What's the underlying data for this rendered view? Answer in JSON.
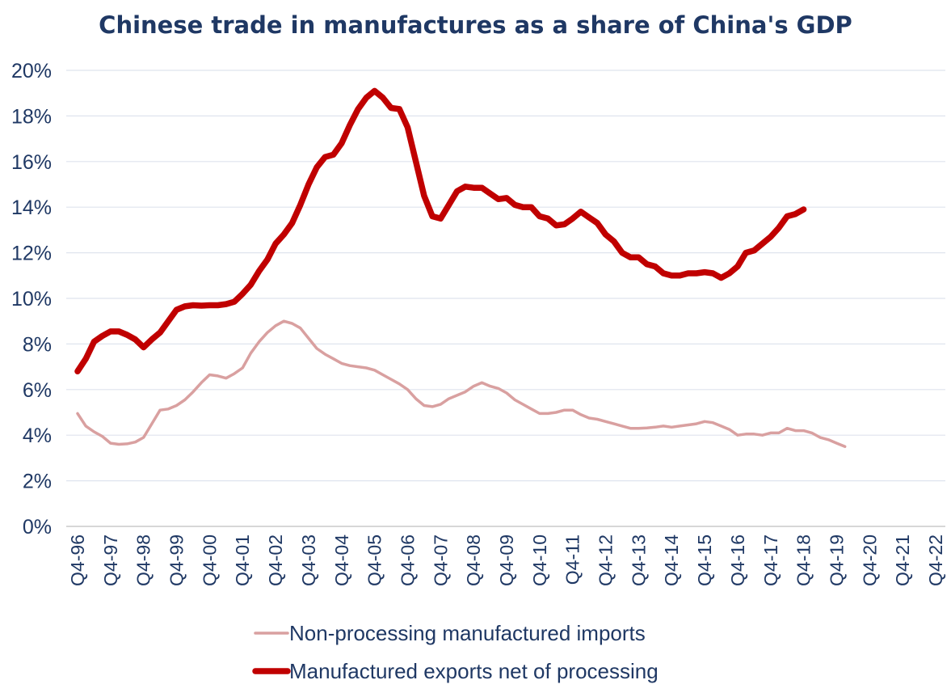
{
  "chart_data": {
    "type": "line",
    "title": "Chinese trade in manufactures as a share of  China's GDP",
    "xlabel": "",
    "ylabel": "",
    "ylim": [
      0,
      20
    ],
    "y_ticks": [
      "0%",
      "2%",
      "4%",
      "6%",
      "8%",
      "10%",
      "12%",
      "14%",
      "16%",
      "18%",
      "20%"
    ],
    "x_ticks": [
      "Q4-96",
      "Q4-97",
      "Q4-98",
      "Q4-99",
      "Q4-00",
      "Q4-01",
      "Q4-02",
      "Q4-03",
      "Q4-04",
      "Q4-05",
      "Q4-06",
      "Q4-07",
      "Q4-08",
      "Q4-09",
      "Q4-10",
      "Q4-11",
      "Q4-12",
      "Q4-13",
      "Q4-14",
      "Q4-15",
      "Q4-16",
      "Q4-17",
      "Q4-18",
      "Q4-19",
      "Q4-20",
      "Q4-21",
      "Q4-22"
    ],
    "grid": true,
    "legend_position": "bottom",
    "series": [
      {
        "name": "Non-processing manufactured imports",
        "color": "#d9a0a0",
        "points": [
          [
            1996.75,
            4.95
          ],
          [
            1997.0,
            4.4
          ],
          [
            1997.25,
            4.15
          ],
          [
            1997.5,
            3.95
          ],
          [
            1997.75,
            3.65
          ],
          [
            1998.0,
            3.6
          ],
          [
            1998.25,
            3.62
          ],
          [
            1998.5,
            3.7
          ],
          [
            1998.75,
            3.9
          ],
          [
            1999.0,
            4.5
          ],
          [
            1999.25,
            5.1
          ],
          [
            1999.5,
            5.15
          ],
          [
            1999.75,
            5.3
          ],
          [
            2000.0,
            5.55
          ],
          [
            2000.25,
            5.9
          ],
          [
            2000.5,
            6.3
          ],
          [
            2000.75,
            6.65
          ],
          [
            2001.0,
            6.6
          ],
          [
            2001.25,
            6.5
          ],
          [
            2001.5,
            6.7
          ],
          [
            2001.75,
            6.95
          ],
          [
            2002.0,
            7.6
          ],
          [
            2002.25,
            8.1
          ],
          [
            2002.5,
            8.5
          ],
          [
            2002.75,
            8.8
          ],
          [
            2003.0,
            9.0
          ],
          [
            2003.25,
            8.9
          ],
          [
            2003.5,
            8.7
          ],
          [
            2003.75,
            8.25
          ],
          [
            2004.0,
            7.8
          ],
          [
            2004.25,
            7.55
          ],
          [
            2004.5,
            7.35
          ],
          [
            2004.75,
            7.15
          ],
          [
            2005.0,
            7.05
          ],
          [
            2005.25,
            7.0
          ],
          [
            2005.5,
            6.95
          ],
          [
            2005.75,
            6.85
          ],
          [
            2006.0,
            6.65
          ],
          [
            2006.25,
            6.45
          ],
          [
            2006.5,
            6.25
          ],
          [
            2006.75,
            6.0
          ],
          [
            2007.0,
            5.6
          ],
          [
            2007.25,
            5.3
          ],
          [
            2007.5,
            5.25
          ],
          [
            2007.75,
            5.35
          ],
          [
            2008.0,
            5.6
          ],
          [
            2008.25,
            5.75
          ],
          [
            2008.5,
            5.9
          ],
          [
            2008.75,
            6.15
          ],
          [
            2009.0,
            6.3
          ],
          [
            2009.25,
            6.15
          ],
          [
            2009.5,
            6.05
          ],
          [
            2009.75,
            5.85
          ],
          [
            2010.0,
            5.55
          ],
          [
            2010.25,
            5.35
          ],
          [
            2010.5,
            5.15
          ],
          [
            2010.75,
            4.95
          ],
          [
            2011.0,
            4.95
          ],
          [
            2011.25,
            5.0
          ],
          [
            2011.5,
            5.1
          ],
          [
            2011.75,
            5.1
          ],
          [
            2012.0,
            4.9
          ],
          [
            2012.25,
            4.75
          ],
          [
            2012.5,
            4.7
          ],
          [
            2012.75,
            4.6
          ],
          [
            2013.0,
            4.5
          ],
          [
            2013.25,
            4.4
          ],
          [
            2013.5,
            4.3
          ],
          [
            2013.75,
            4.3
          ],
          [
            2014.0,
            4.32
          ],
          [
            2014.25,
            4.35
          ],
          [
            2014.5,
            4.4
          ],
          [
            2014.75,
            4.35
          ],
          [
            2015.0,
            4.4
          ],
          [
            2015.25,
            4.45
          ],
          [
            2015.5,
            4.5
          ],
          [
            2015.75,
            4.6
          ],
          [
            2016.0,
            4.55
          ],
          [
            2016.25,
            4.4
          ],
          [
            2016.5,
            4.25
          ],
          [
            2016.75,
            4.0
          ],
          [
            2017.0,
            4.05
          ],
          [
            2017.25,
            4.05
          ],
          [
            2017.5,
            4.0
          ],
          [
            2017.75,
            4.1
          ],
          [
            2018.0,
            4.1
          ],
          [
            2018.25,
            4.3
          ],
          [
            2018.5,
            4.2
          ],
          [
            2018.75,
            4.2
          ],
          [
            2019.0,
            4.1
          ],
          [
            2019.25,
            3.9
          ],
          [
            2019.5,
            3.8
          ],
          [
            2019.75,
            3.65
          ],
          [
            2020.0,
            3.5
          ]
        ]
      },
      {
        "name": "Manufactured exports net of processing",
        "color": "#c00000",
        "points": [
          [
            1996.75,
            6.8
          ],
          [
            1997.0,
            7.35
          ],
          [
            1997.25,
            8.1
          ],
          [
            1997.5,
            8.35
          ],
          [
            1997.75,
            8.55
          ],
          [
            1998.0,
            8.55
          ],
          [
            1998.25,
            8.4
          ],
          [
            1998.5,
            8.2
          ],
          [
            1998.75,
            7.85
          ],
          [
            1999.0,
            8.2
          ],
          [
            1999.25,
            8.5
          ],
          [
            1999.5,
            9.0
          ],
          [
            1999.75,
            9.5
          ],
          [
            2000.0,
            9.65
          ],
          [
            2000.25,
            9.7
          ],
          [
            2000.5,
            9.68
          ],
          [
            2000.75,
            9.7
          ],
          [
            2001.0,
            9.7
          ],
          [
            2001.25,
            9.75
          ],
          [
            2001.5,
            9.85
          ],
          [
            2001.75,
            10.2
          ],
          [
            2002.0,
            10.6
          ],
          [
            2002.25,
            11.2
          ],
          [
            2002.5,
            11.7
          ],
          [
            2002.75,
            12.4
          ],
          [
            2003.0,
            12.8
          ],
          [
            2003.25,
            13.3
          ],
          [
            2003.5,
            14.1
          ],
          [
            2003.75,
            15.0
          ],
          [
            2004.0,
            15.75
          ],
          [
            2004.25,
            16.2
          ],
          [
            2004.5,
            16.3
          ],
          [
            2004.75,
            16.8
          ],
          [
            2005.0,
            17.6
          ],
          [
            2005.25,
            18.3
          ],
          [
            2005.5,
            18.8
          ],
          [
            2005.75,
            19.1
          ],
          [
            2006.0,
            18.8
          ],
          [
            2006.25,
            18.35
          ],
          [
            2006.5,
            18.3
          ],
          [
            2006.75,
            17.5
          ],
          [
            2007.0,
            16.0
          ],
          [
            2007.25,
            14.5
          ],
          [
            2007.5,
            13.6
          ],
          [
            2007.75,
            13.5
          ],
          [
            2008.0,
            14.1
          ],
          [
            2008.25,
            14.7
          ],
          [
            2008.5,
            14.9
          ],
          [
            2008.75,
            14.85
          ],
          [
            2009.0,
            14.85
          ],
          [
            2009.25,
            14.6
          ],
          [
            2009.5,
            14.35
          ],
          [
            2009.75,
            14.4
          ],
          [
            2010.0,
            14.1
          ],
          [
            2010.25,
            14.0
          ],
          [
            2010.5,
            14.0
          ],
          [
            2010.75,
            13.6
          ],
          [
            2011.0,
            13.5
          ],
          [
            2011.25,
            13.2
          ],
          [
            2011.5,
            13.25
          ],
          [
            2011.75,
            13.5
          ],
          [
            2012.0,
            13.8
          ],
          [
            2012.25,
            13.55
          ],
          [
            2012.5,
            13.3
          ],
          [
            2012.75,
            12.8
          ],
          [
            2013.0,
            12.5
          ],
          [
            2013.25,
            12.0
          ],
          [
            2013.5,
            11.8
          ],
          [
            2013.75,
            11.8
          ],
          [
            2014.0,
            11.5
          ],
          [
            2014.25,
            11.4
          ],
          [
            2014.5,
            11.1
          ],
          [
            2014.75,
            11.0
          ],
          [
            2015.0,
            11.0
          ],
          [
            2015.25,
            11.1
          ],
          [
            2015.5,
            11.1
          ],
          [
            2015.75,
            11.15
          ],
          [
            2016.0,
            11.1
          ],
          [
            2016.25,
            10.9
          ],
          [
            2016.5,
            11.1
          ],
          [
            2016.75,
            11.4
          ],
          [
            2017.0,
            12.0
          ],
          [
            2017.25,
            12.1
          ],
          [
            2017.5,
            12.4
          ],
          [
            2017.75,
            12.7
          ],
          [
            2018.0,
            13.1
          ],
          [
            2018.25,
            13.6
          ],
          [
            2018.5,
            13.7
          ],
          [
            2018.75,
            13.9
          ]
        ]
      }
    ]
  }
}
